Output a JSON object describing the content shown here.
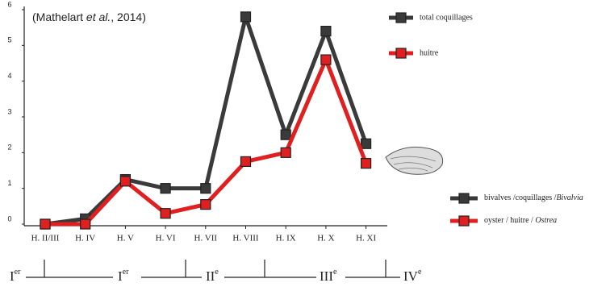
{
  "chart_data": {
    "type": "line",
    "annotation": {
      "before": "(Mathelart ",
      "italic": "et al.",
      "after": ", 2014)"
    },
    "categories": [
      "H. II/III",
      "H. IV",
      "H. V",
      "H. VI",
      "H. VII",
      "H. VIII",
      "H. IX",
      "H. X",
      "H. XI"
    ],
    "series": [
      {
        "name": "total coquillages",
        "color": "#3a3a3a",
        "values": [
          0,
          0.15,
          1.25,
          1.0,
          1.0,
          5.8,
          2.5,
          5.4,
          2.25
        ]
      },
      {
        "name": "huitre",
        "color": "#e02020",
        "values": [
          0,
          0,
          1.2,
          0.3,
          0.55,
          1.75,
          2.0,
          4.6,
          1.7
        ]
      }
    ],
    "ylim": [
      0,
      6
    ],
    "yticks": [
      0,
      1,
      2,
      3,
      4,
      5,
      6
    ],
    "legend2": [
      {
        "text": "bivalves /coquillages /",
        "italic": "Bivalvia"
      },
      {
        "text": "oyster / huitre / ",
        "italic": "Ostrea"
      }
    ],
    "periods": [
      {
        "numeral": "I",
        "suffix": "er"
      },
      {
        "numeral": "I",
        "suffix": "er"
      },
      {
        "numeral": "II",
        "suffix": "e"
      },
      {
        "numeral": "III",
        "suffix": "e"
      },
      {
        "numeral": "IV",
        "suffix": "e"
      }
    ]
  }
}
